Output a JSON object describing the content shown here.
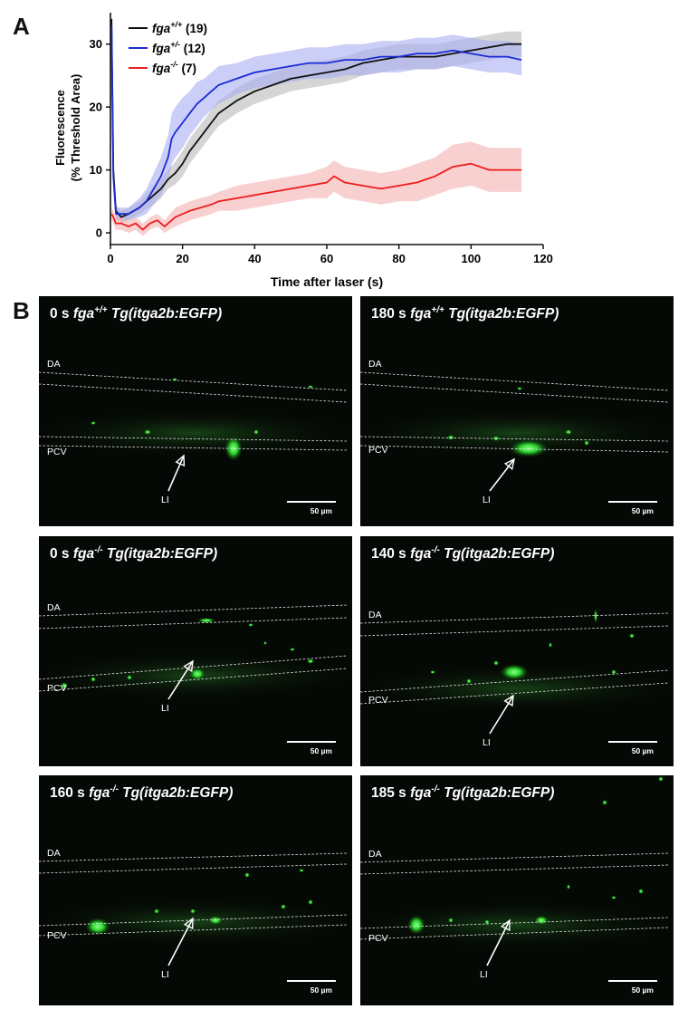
{
  "panel_labels": {
    "a": "A",
    "b": "B"
  },
  "chart_data": {
    "type": "line",
    "xlabel": "Time after laser (s)",
    "ylabel_line1": "Fluorescence",
    "ylabel_line2": "(% Threshold Area)",
    "xlim": [
      0,
      120
    ],
    "ylim": [
      -1,
      35
    ],
    "xticks": [
      0,
      20,
      40,
      60,
      80,
      100,
      120
    ],
    "yticks": [
      0,
      10,
      20,
      30
    ],
    "legend_position": "top-left",
    "series": [
      {
        "name_main": "fga",
        "name_sup": "+/+",
        "count": "(19)",
        "color": "#111111",
        "band": "#b9b9b9",
        "x": [
          0.3,
          0.8,
          1.5,
          3,
          5,
          8,
          10,
          12,
          14,
          16,
          18,
          20,
          22,
          24,
          26,
          28,
          30,
          35,
          40,
          45,
          50,
          55,
          60,
          65,
          70,
          75,
          80,
          85,
          90,
          95,
          100,
          105,
          110,
          114
        ],
        "y": [
          34,
          10,
          3.5,
          2.5,
          3,
          4,
          5,
          6,
          7,
          8.5,
          9.5,
          11,
          13,
          14.5,
          16,
          17.5,
          19,
          21,
          22.5,
          23.5,
          24.5,
          25,
          25.5,
          26,
          27,
          27.5,
          28,
          28,
          28,
          28.5,
          29,
          29.5,
          30,
          30
        ],
        "err": [
          0,
          2,
          1,
          1,
          1,
          1,
          1.2,
          1.5,
          1.5,
          1.5,
          1.8,
          2,
          2,
          2,
          2,
          2,
          2,
          2,
          2,
          2,
          2,
          2,
          2,
          2,
          2,
          2,
          2,
          2,
          2,
          2,
          2,
          2,
          2,
          2
        ]
      },
      {
        "name_main": "fga",
        "name_sup": "+/-",
        "count": "(12)",
        "color": "#1c2bd6",
        "band": "#a9aef0",
        "x": [
          0.3,
          0.8,
          1.5,
          3,
          5,
          8,
          10,
          12,
          14,
          16,
          17,
          18,
          20,
          22,
          24,
          26,
          28,
          30,
          35,
          40,
          45,
          50,
          55,
          60,
          65,
          70,
          75,
          80,
          85,
          90,
          95,
          100,
          105,
          110,
          114
        ],
        "y": [
          33,
          9,
          3,
          3,
          3,
          4,
          5,
          7,
          9,
          12,
          15,
          16,
          17.5,
          19,
          20.5,
          21.5,
          22.5,
          23.5,
          24.5,
          25.5,
          26,
          26.5,
          27,
          27,
          27.5,
          27.5,
          28,
          28,
          28.5,
          28.5,
          29,
          28.5,
          28,
          28,
          27.5
        ],
        "err": [
          0,
          2,
          1,
          1,
          1,
          1.5,
          2,
          2.5,
          3,
          3.5,
          4,
          4,
          4,
          3.5,
          3.5,
          3,
          3,
          3,
          2.5,
          2.5,
          2.5,
          2.5,
          2.5,
          2.5,
          2.5,
          2.5,
          2.5,
          2.5,
          2.5,
          2.5,
          2.5,
          2.5,
          2.5,
          2.5,
          2.5
        ]
      },
      {
        "name_main": "fga",
        "name_sup": "-/-",
        "count": "(7)",
        "color": "#ee1c1c",
        "band": "#f4b0b0",
        "x": [
          0.3,
          0.8,
          1.5,
          3,
          5,
          7,
          9,
          11,
          13,
          15,
          18,
          20,
          22,
          25,
          28,
          30,
          35,
          40,
          45,
          50,
          55,
          60,
          62,
          65,
          70,
          75,
          80,
          85,
          90,
          95,
          100,
          105,
          110,
          114
        ],
        "y": [
          3,
          2.5,
          1.5,
          1.5,
          1,
          1.5,
          0.5,
          1.5,
          2,
          1,
          2.5,
          3,
          3.5,
          4,
          4.5,
          5,
          5.5,
          6,
          6.5,
          7,
          7.5,
          8,
          9,
          8,
          7.5,
          7,
          7.5,
          8,
          9,
          10.5,
          11,
          10,
          10,
          10
        ],
        "err": [
          1,
          1,
          1,
          1,
          1,
          1,
          1,
          1,
          1,
          1,
          1.5,
          1.5,
          1.5,
          1.5,
          1.5,
          1.5,
          2,
          2,
          2,
          2,
          2,
          2.5,
          2.5,
          2.5,
          2.5,
          2.5,
          2.5,
          3,
          3,
          3.5,
          3.5,
          3.5,
          3.5,
          3.5
        ]
      }
    ]
  },
  "micrographs": [
    {
      "time": "0 s",
      "genotype": "fga",
      "sup": "+/+",
      "line": "Tg(itga2b:EGFP)",
      "vessel_top": "DA",
      "vessel_bottom": "PCV",
      "arrow_label": "LI",
      "scale": "50 µm"
    },
    {
      "time": "180 s",
      "genotype": "fga",
      "sup": "+/+",
      "line": "Tg(itga2b:EGFP)",
      "vessel_top": "DA",
      "vessel_bottom": "PCV",
      "arrow_label": "LI",
      "scale": "50 µm"
    },
    {
      "time": "0 s",
      "genotype": "fga",
      "sup": "-/-",
      "line": "Tg(itga2b:EGFP)",
      "vessel_top": "DA",
      "vessel_bottom": "PCV",
      "arrow_label": "LI",
      "scale": "50 µm"
    },
    {
      "time": "140 s",
      "genotype": "fga",
      "sup": "-/-",
      "line": "Tg(itga2b:EGFP)",
      "vessel_top": "DA",
      "vessel_bottom": "PCV",
      "arrow_label": "LI",
      "scale": "50 µm"
    },
    {
      "time": "160 s",
      "genotype": "fga",
      "sup": "-/-",
      "line": "Tg(itga2b:EGFP)",
      "vessel_top": "DA",
      "vessel_bottom": "PCV",
      "arrow_label": "LI",
      "scale": "50 µm"
    },
    {
      "time": "185 s",
      "genotype": "fga",
      "sup": "-/-",
      "line": "Tg(itga2b:EGFP)",
      "vessel_top": "DA",
      "vessel_bottom": "PCV",
      "arrow_label": "LI",
      "scale": "50 µm"
    }
  ]
}
